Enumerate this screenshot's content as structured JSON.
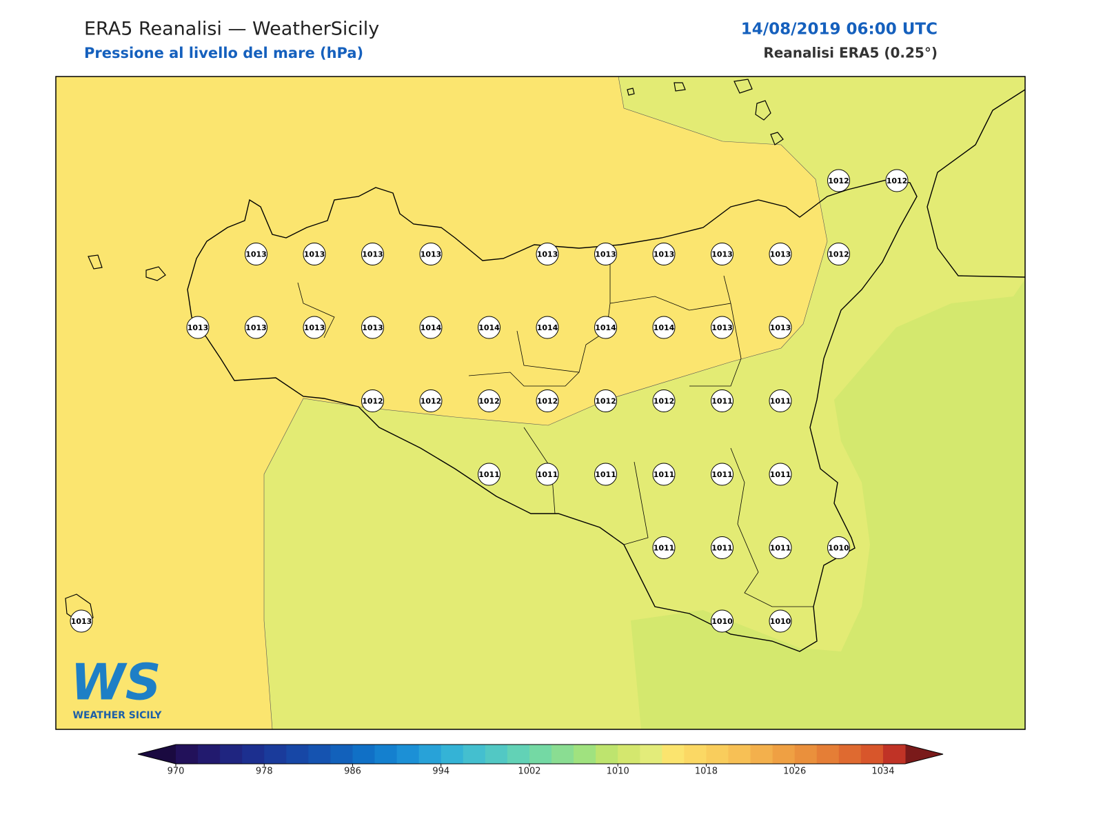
{
  "header": {
    "title": "ERA5 Reanalisi — WeatherSicily",
    "subtitle": "Pressione al livello del mare (hPa)",
    "date": "14/08/2019 06:00 UTC",
    "source": "Reanalisi ERA5 (0.25°)"
  },
  "stations": {
    "rows": [
      [
        null,
        null,
        null,
        null,
        null,
        null,
        null,
        null,
        null,
        null,
        null,
        null,
        null,
        1012,
        1012
      ],
      [
        null,
        null,
        null,
        1013,
        1013,
        1013,
        1013,
        null,
        1013,
        1013,
        1013,
        1013,
        1013,
        1012,
        null
      ],
      [
        null,
        null,
        1013,
        1013,
        1013,
        1013,
        1014,
        1014,
        1014,
        1014,
        1014,
        1013,
        1013,
        null,
        null
      ],
      [
        null,
        null,
        null,
        null,
        null,
        1012,
        1012,
        1012,
        1012,
        1012,
        1012,
        1011,
        1011,
        null,
        null
      ],
      [
        null,
        null,
        null,
        null,
        null,
        null,
        null,
        1011,
        1011,
        1011,
        1011,
        1011,
        1011,
        null,
        null
      ],
      [
        null,
        null,
        null,
        null,
        null,
        null,
        null,
        null,
        null,
        null,
        1011,
        1011,
        1011,
        1010,
        null
      ],
      [
        1013,
        null,
        null,
        null,
        null,
        null,
        null,
        null,
        null,
        null,
        null,
        1010,
        1010,
        null,
        null
      ]
    ]
  },
  "colorbar": {
    "lim": [
      970,
      1036
    ],
    "step": 2,
    "ticks": [
      970,
      978,
      986,
      994,
      1002,
      1010,
      1018,
      1026,
      1034
    ],
    "under_color": "#1a0a40",
    "over_color": "#7a1a1a",
    "colors": [
      "#22115a",
      "#221a6e",
      "#1f2580",
      "#1c2f8f",
      "#1a3b9b",
      "#1747a6",
      "#1553b0",
      "#1261bb",
      "#1070c6",
      "#1480cf",
      "#1c90d6",
      "#28a2d8",
      "#34b3d6",
      "#44bfcf",
      "#52c8c4",
      "#62d2b6",
      "#74d9a4",
      "#8add92",
      "#a0e27f",
      "#bee46e",
      "#d4e76e",
      "#e3ec7a",
      "#fbe46e",
      "#fbd864",
      "#f9cd5c",
      "#f7c055",
      "#f3b04c",
      "#efa043",
      "#ea903c",
      "#e57e36",
      "#df6a30",
      "#d8562b",
      "#c03326"
    ]
  },
  "logo": {
    "mark": "WS",
    "caption": "WEATHER SICILY"
  }
}
